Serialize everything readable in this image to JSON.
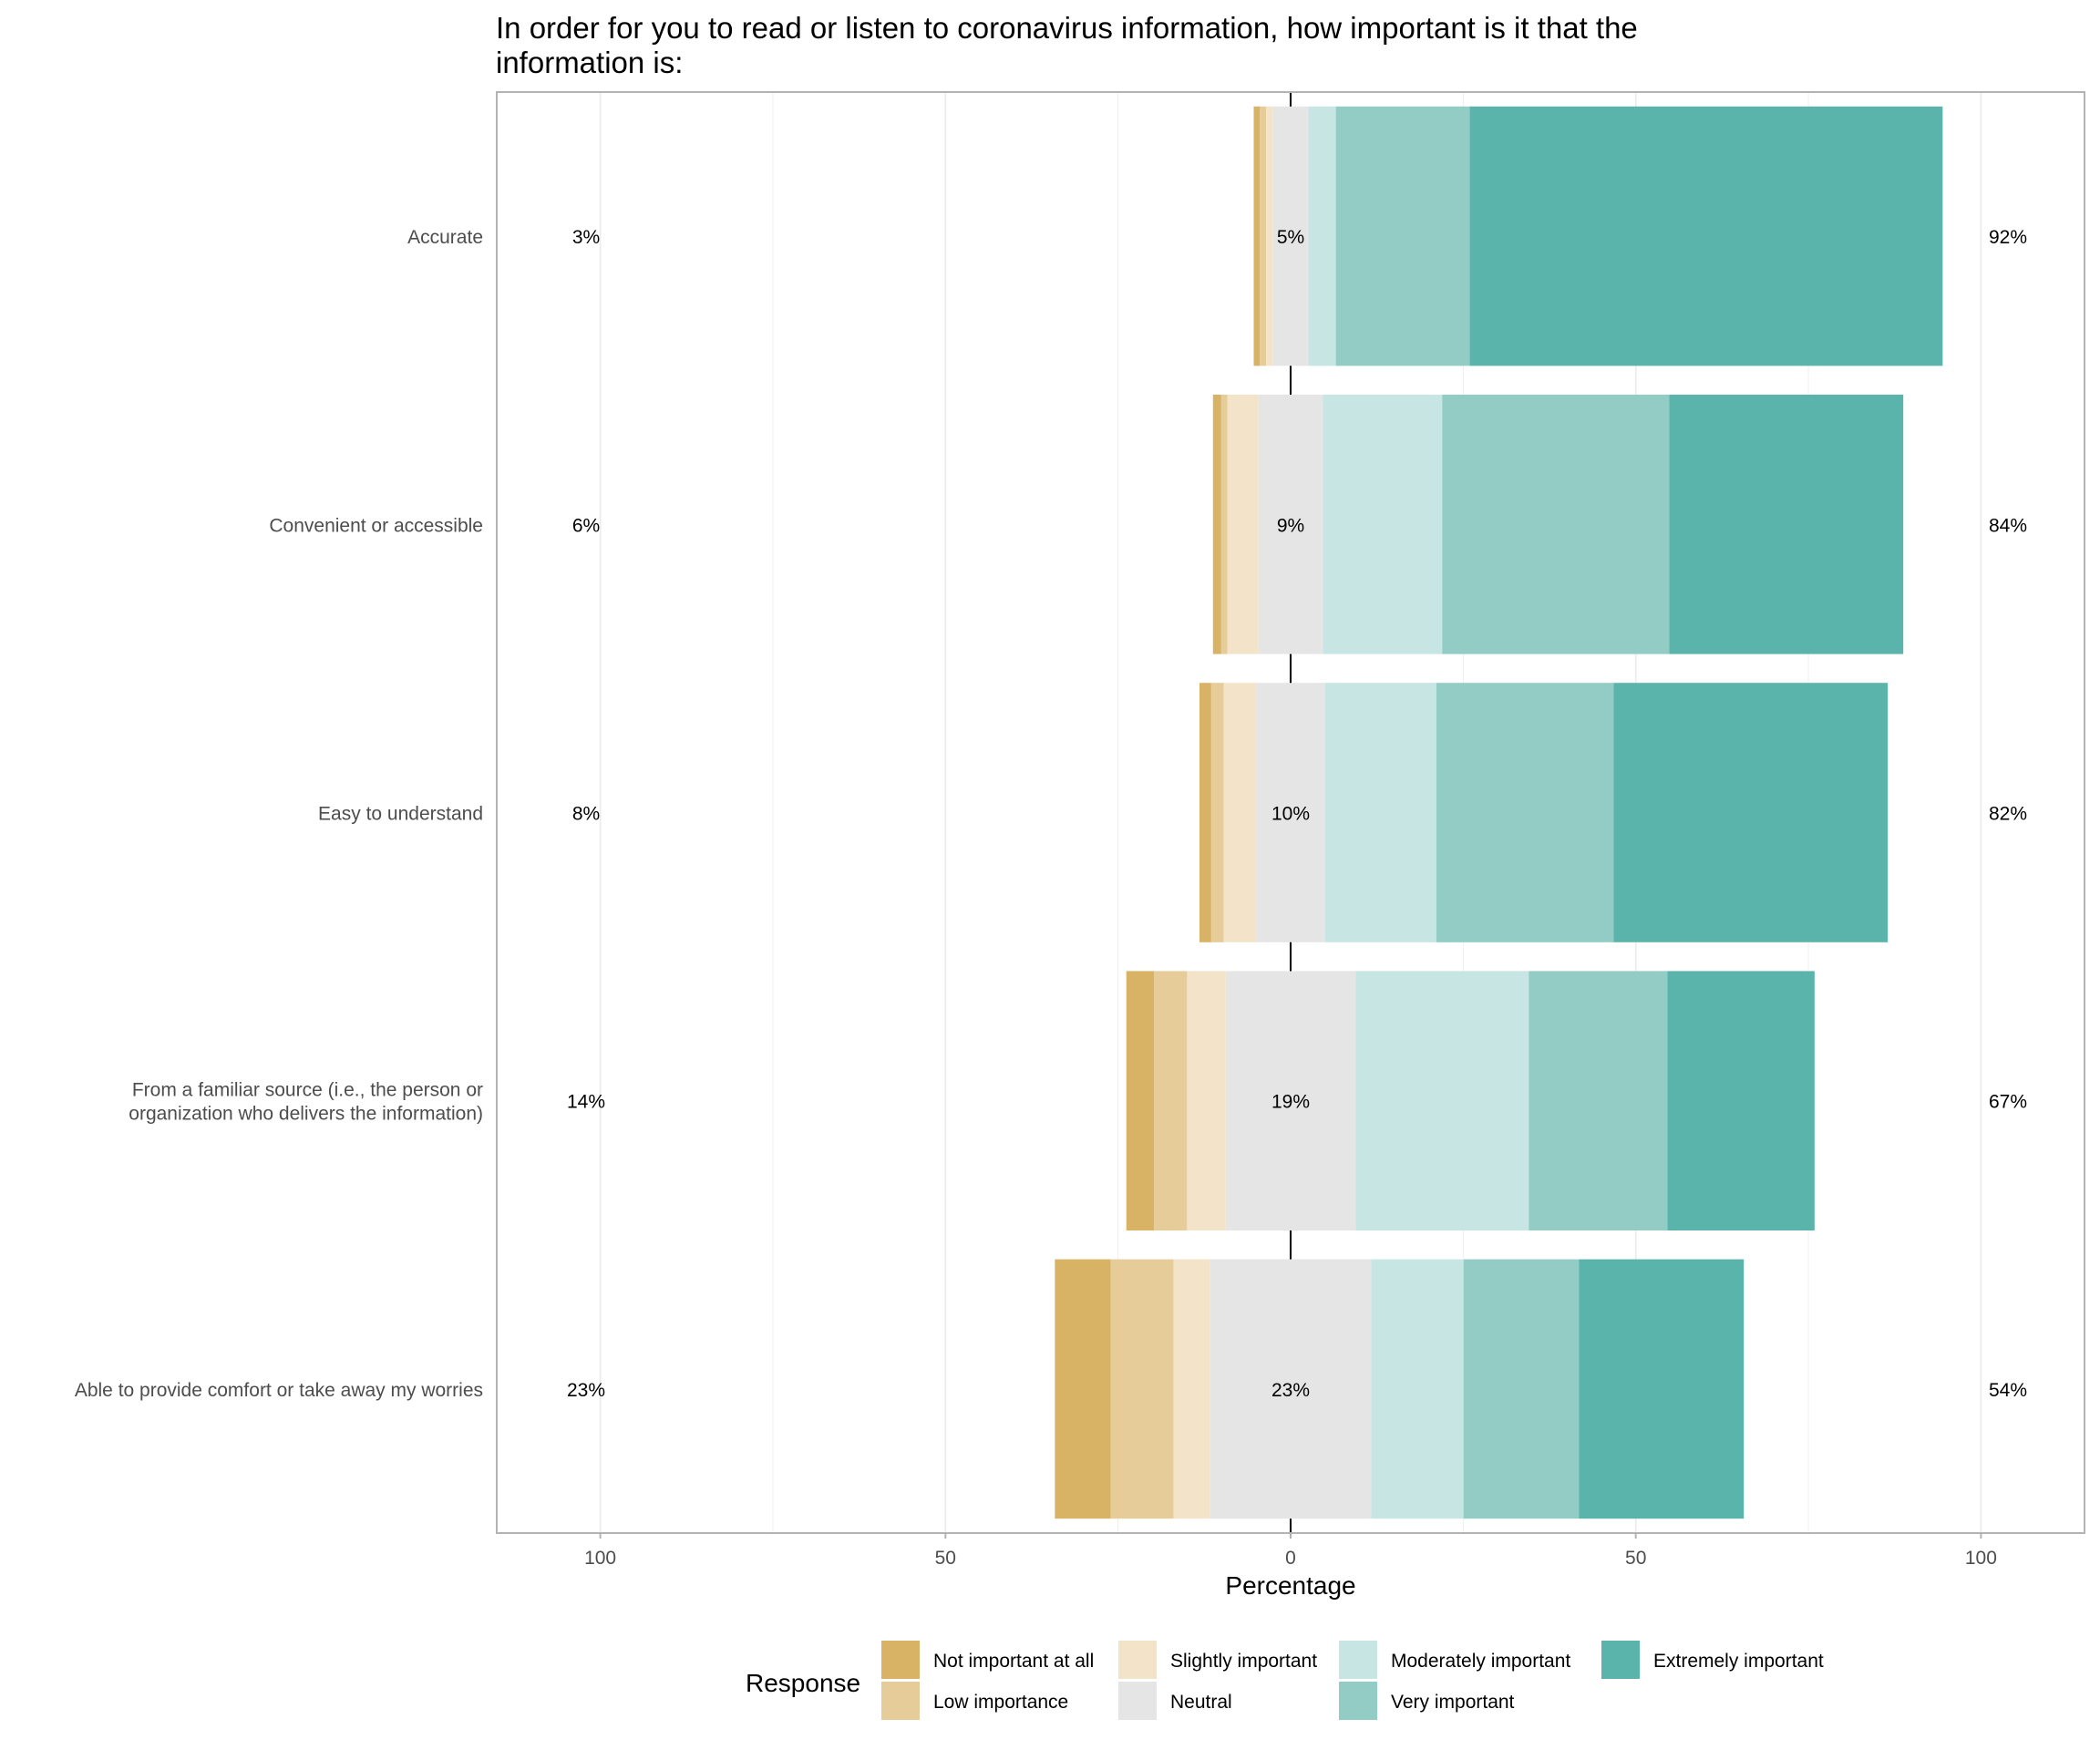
{
  "chart_data": {
    "type": "bar",
    "orientation": "horizontal-diverging-stacked",
    "title": "In order for you to read or listen to coronavirus information, how important is it that the information is:",
    "title_lines": [
      "In order for you to read or listen to coronavirus information, how important is it that the",
      "information is:"
    ],
    "xlabel": "Percentage",
    "ylabel": "",
    "xlim": [
      -115,
      115
    ],
    "x_ticks": [
      -100,
      -50,
      0,
      50,
      100
    ],
    "x_tick_labels": [
      "100",
      "50",
      "0",
      "50",
      "100"
    ],
    "grid": true,
    "legend": {
      "title": "Response",
      "placement": "bottom"
    },
    "levels": [
      "Not important at all",
      "Low importance",
      "Slightly important",
      "Neutral",
      "Moderately important",
      "Very important",
      "Extremely important"
    ],
    "colors": [
      "#d8b365",
      "#e6cc98",
      "#f3e4c9",
      "#e5e5e5",
      "#c7e5e3",
      "#92ccc5",
      "#5ab4ab"
    ],
    "categories": [
      {
        "label_lines": [
          "Accurate"
        ],
        "values": [
          0.9,
          0.9,
          1.0,
          5.1,
          4.0,
          19.4,
          68.5
        ],
        "left_label": "3%",
        "center_label": "5%",
        "right_label": "92%"
      },
      {
        "label_lines": [
          "Convenient or accessible"
        ],
        "values": [
          1.2,
          0.9,
          4.5,
          9.3,
          17.3,
          32.9,
          33.9
        ],
        "left_label": "6%",
        "center_label": "9%",
        "right_label": "84%"
      },
      {
        "label_lines": [
          "Easy to understand"
        ],
        "values": [
          1.7,
          1.8,
          4.7,
          10.0,
          16.1,
          25.7,
          39.7
        ],
        "left_label": "8%",
        "center_label": "10%",
        "right_label": "82%"
      },
      {
        "label_lines": [
          "From a familiar source (i.e., the person or",
          "organization who delivers the information)"
        ],
        "values": [
          4.0,
          4.8,
          5.6,
          18.8,
          25.1,
          20.1,
          21.3
        ],
        "left_label": "14%",
        "center_label": "19%",
        "right_label": "67%"
      },
      {
        "label_lines": [
          "Able to provide comfort or take away my worries"
        ],
        "values": [
          8.1,
          9.1,
          5.3,
          23.3,
          13.4,
          16.7,
          23.9
        ],
        "left_label": "23%",
        "center_label": "23%",
        "right_label": "54%"
      }
    ]
  }
}
